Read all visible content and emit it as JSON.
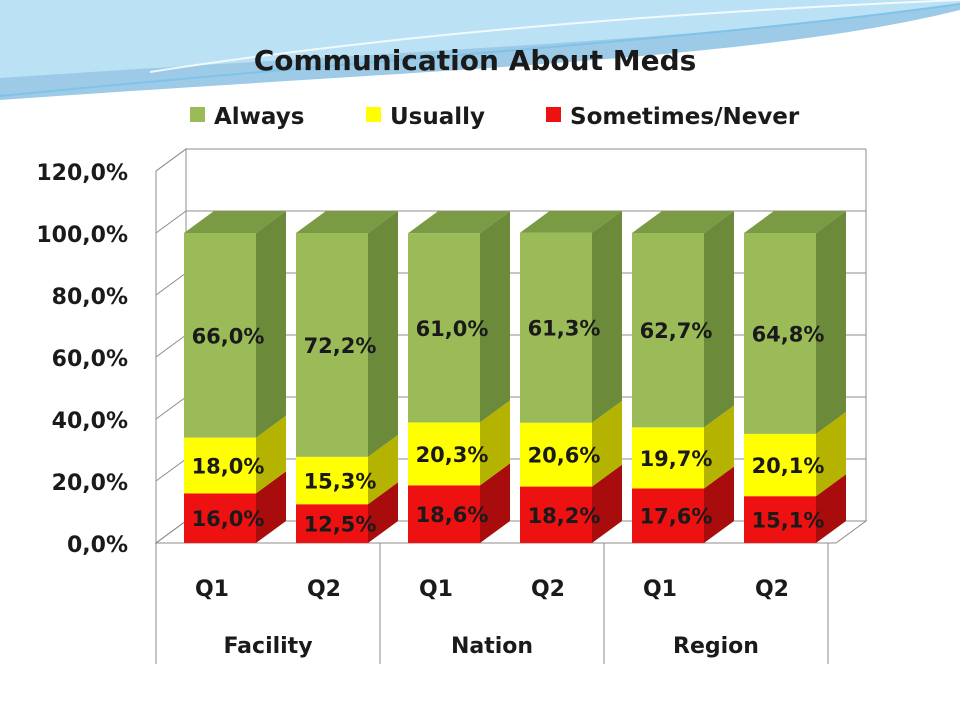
{
  "slide": {
    "colors": {
      "swoosh_dark": "#4a9fd4",
      "swoosh_light": "#bfe3f5",
      "swoosh_line": "#7fc3e8"
    }
  },
  "chart_data": {
    "type": "bar",
    "stacked": true,
    "three_d": true,
    "title": "Communication About Meds",
    "xlabel": "",
    "ylabel": "",
    "ylim": [
      0,
      120
    ],
    "yticks": [
      "0,0%",
      "20,0%",
      "40,0%",
      "60,0%",
      "80,0%",
      "100,0%",
      "120,0%"
    ],
    "grid": true,
    "legend_position": "top",
    "categories": [
      "Q1",
      "Q2",
      "Q1",
      "Q2",
      "Q1",
      "Q2"
    ],
    "groups": [
      "Facility",
      "Nation",
      "Region"
    ],
    "series": [
      {
        "name": "Sometimes/Never",
        "color": "#ee1111",
        "side_color": "#a80c0c",
        "values": [
          16.0,
          12.5,
          18.6,
          18.2,
          17.6,
          15.1
        ],
        "labels": [
          "16,0%",
          "12,5%",
          "18,6%",
          "18,2%",
          "17,6%",
          "15,1%"
        ]
      },
      {
        "name": "Usually",
        "color": "#ffff00",
        "side_color": "#b3b300",
        "values": [
          18.0,
          15.3,
          20.3,
          20.6,
          19.7,
          20.1
        ],
        "labels": [
          "18,0%",
          "15,3%",
          "20,3%",
          "20,6%",
          "19,7%",
          "20,1%"
        ]
      },
      {
        "name": "Always",
        "color": "#9bbb59",
        "side_color": "#6b8a3a",
        "top_color": "#7a9a44",
        "values": [
          66.0,
          72.2,
          61.0,
          61.3,
          62.7,
          64.8
        ],
        "labels": [
          "66,0%",
          "72,2%",
          "61,0%",
          "61,3%",
          "62,7%",
          "64,8%"
        ]
      }
    ],
    "legend_order": [
      "Always",
      "Usually",
      "Sometimes/Never"
    ]
  }
}
